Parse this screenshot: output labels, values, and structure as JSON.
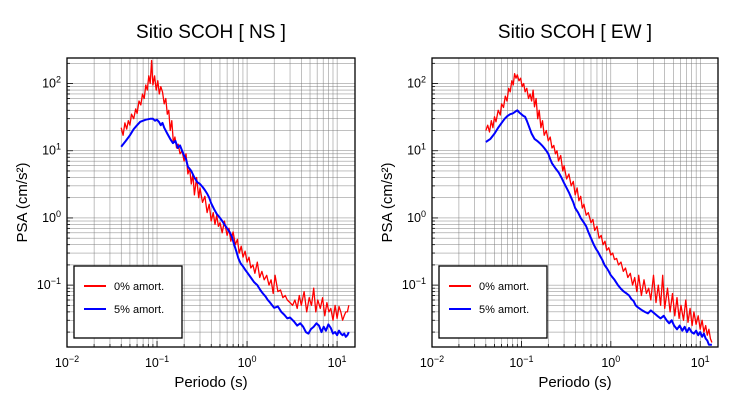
{
  "chart_data": [
    {
      "type": "line",
      "title": "Sitio SCOH [ NS ]",
      "xlabel": "Periodo (s)",
      "ylabel": "PSA (cm/s²)",
      "xscale": "log",
      "yscale": "log",
      "xlim": [
        0.01,
        15.8
      ],
      "ylim": [
        0.012,
        240
      ],
      "xticks": [
        {
          "v": 0.01,
          "base": "10",
          "exp": "−2"
        },
        {
          "v": 0.1,
          "base": "10",
          "exp": "−1"
        },
        {
          "v": 1,
          "base": "10",
          "exp": "0"
        },
        {
          "v": 10,
          "base": "10",
          "exp": "1"
        }
      ],
      "yticks": [
        {
          "v": 0.1,
          "base": "10",
          "exp": "−1"
        },
        {
          "v": 1,
          "base": "10",
          "exp": "0"
        },
        {
          "v": 10,
          "base": "10",
          "exp": "1"
        },
        {
          "v": 100,
          "base": "10",
          "exp": "2"
        }
      ],
      "grid": true,
      "legend_position": "bottom-left",
      "series": [
        {
          "name": "0% amort.",
          "color": "#ff0000",
          "x": [
            0.04,
            0.042,
            0.044,
            0.046,
            0.048,
            0.05,
            0.052,
            0.055,
            0.058,
            0.06,
            0.063,
            0.066,
            0.069,
            0.072,
            0.075,
            0.078,
            0.081,
            0.084,
            0.087,
            0.09,
            0.094,
            0.098,
            0.102,
            0.106,
            0.11,
            0.115,
            0.12,
            0.125,
            0.13,
            0.135,
            0.14,
            0.146,
            0.152,
            0.158,
            0.165,
            0.172,
            0.18,
            0.19,
            0.2,
            0.21,
            0.22,
            0.23,
            0.24,
            0.25,
            0.26,
            0.275,
            0.29,
            0.3,
            0.32,
            0.34,
            0.36,
            0.38,
            0.4,
            0.42,
            0.44,
            0.46,
            0.48,
            0.5,
            0.53,
            0.56,
            0.6,
            0.63,
            0.66,
            0.7,
            0.74,
            0.78,
            0.82,
            0.86,
            0.9,
            0.95,
            1.0,
            1.05,
            1.1,
            1.16,
            1.22,
            1.3,
            1.38,
            1.46,
            1.55,
            1.65,
            1.75,
            1.85,
            1.95,
            2.05,
            2.2,
            2.35,
            2.5,
            2.65,
            2.8,
            3.0,
            3.2,
            3.4,
            3.6,
            3.8,
            4.0,
            4.3,
            4.6,
            4.9,
            5.2,
            5.5,
            5.8,
            6.1,
            6.5,
            6.9,
            7.3,
            7.7,
            8.1,
            8.5,
            9.0,
            9.5,
            10.0,
            10.5,
            11.0,
            11.5,
            12.0,
            12.5,
            13.0,
            13.5
          ],
          "values": [
            22,
            17,
            26,
            21,
            28,
            24,
            35,
            30,
            42,
            36,
            55,
            48,
            70,
            60,
            95,
            80,
            130,
            100,
            220,
            95,
            130,
            80,
            110,
            70,
            90,
            75,
            50,
            60,
            35,
            40,
            20,
            28,
            13,
            16,
            11,
            12.5,
            9,
            10,
            7,
            9,
            4.5,
            5.5,
            3.2,
            4.5,
            2.2,
            4.0,
            2.0,
            2.8,
            1.7,
            2.1,
            1.2,
            1.6,
            0.9,
            1.2,
            0.8,
            1.1,
            0.75,
            0.85,
            0.6,
            0.9,
            0.55,
            0.7,
            0.45,
            0.62,
            0.4,
            0.48,
            0.3,
            0.38,
            0.26,
            0.32,
            0.22,
            0.26,
            0.18,
            0.2,
            0.15,
            0.22,
            0.13,
            0.16,
            0.12,
            0.14,
            0.1,
            0.12,
            0.075,
            0.14,
            0.08,
            0.085,
            0.065,
            0.07,
            0.06,
            0.055,
            0.05,
            0.06,
            0.045,
            0.07,
            0.05,
            0.08,
            0.04,
            0.065,
            0.05,
            0.09,
            0.04,
            0.06,
            0.045,
            0.065,
            0.035,
            0.055,
            0.04,
            0.045,
            0.03,
            0.05,
            0.032,
            0.048,
            0.04,
            0.03,
            0.035,
            0.04,
            0.04,
            0.05
          ]
        },
        {
          "name": "5% amort.",
          "color": "#0000ff",
          "x": [
            0.04,
            0.045,
            0.05,
            0.055,
            0.06,
            0.065,
            0.07,
            0.075,
            0.08,
            0.085,
            0.09,
            0.095,
            0.1,
            0.105,
            0.11,
            0.115,
            0.12,
            0.13,
            0.14,
            0.15,
            0.16,
            0.17,
            0.18,
            0.19,
            0.2,
            0.21,
            0.22,
            0.24,
            0.26,
            0.28,
            0.3,
            0.32,
            0.34,
            0.36,
            0.38,
            0.4,
            0.43,
            0.46,
            0.5,
            0.53,
            0.56,
            0.6,
            0.64,
            0.68,
            0.72,
            0.76,
            0.8,
            0.85,
            0.9,
            0.95,
            1.0,
            1.1,
            1.2,
            1.3,
            1.4,
            1.5,
            1.6,
            1.7,
            1.8,
            1.9,
            2.0,
            2.2,
            2.4,
            2.6,
            2.8,
            3.0,
            3.3,
            3.6,
            3.9,
            4.2,
            4.5,
            4.8,
            5.1,
            5.5,
            5.9,
            6.3,
            6.7,
            7.1,
            7.5,
            8.0,
            8.5,
            9.0,
            9.5,
            10.0,
            10.5,
            11.0,
            11.5,
            12.0,
            12.5,
            13.0,
            13.5
          ],
          "values": [
            11.5,
            14,
            17,
            21,
            24,
            27,
            28,
            29,
            29.5,
            30,
            30,
            28,
            29,
            27,
            24,
            26,
            22,
            18,
            15,
            13,
            14,
            11,
            12,
            10,
            8.5,
            7.5,
            5.8,
            5,
            4,
            3.4,
            3.2,
            2.9,
            2.6,
            2.3,
            2.0,
            1.65,
            1.35,
            1.15,
            1.0,
            0.9,
            0.8,
            0.7,
            0.62,
            0.52,
            0.4,
            0.32,
            0.25,
            0.21,
            0.19,
            0.17,
            0.155,
            0.13,
            0.11,
            0.1,
            0.085,
            0.075,
            0.068,
            0.06,
            0.055,
            0.05,
            0.046,
            0.048,
            0.04,
            0.036,
            0.032,
            0.033,
            0.029,
            0.025,
            0.027,
            0.024,
            0.02,
            0.019,
            0.022,
            0.024,
            0.027,
            0.025,
            0.02,
            0.024,
            0.021,
            0.026,
            0.023,
            0.019,
            0.02,
            0.018,
            0.021,
            0.019,
            0.018,
            0.019,
            0.017,
            0.018,
            0.02
          ]
        }
      ]
    },
    {
      "type": "line",
      "title": "Sitio SCOH [ EW ]",
      "xlabel": "Periodo (s)",
      "ylabel": "PSA (cm/s²)",
      "xscale": "log",
      "yscale": "log",
      "xlim": [
        0.01,
        15.8
      ],
      "ylim": [
        0.012,
        240
      ],
      "xticks": [
        {
          "v": 0.01,
          "base": "10",
          "exp": "−2"
        },
        {
          "v": 0.1,
          "base": "10",
          "exp": "−1"
        },
        {
          "v": 1,
          "base": "10",
          "exp": "0"
        },
        {
          "v": 10,
          "base": "10",
          "exp": "1"
        }
      ],
      "yticks": [
        {
          "v": 0.1,
          "base": "10",
          "exp": "−1"
        },
        {
          "v": 1,
          "base": "10",
          "exp": "0"
        },
        {
          "v": 10,
          "base": "10",
          "exp": "1"
        },
        {
          "v": 100,
          "base": "10",
          "exp": "2"
        }
      ],
      "grid": true,
      "legend_position": "bottom-left",
      "series": [
        {
          "name": "0% amort.",
          "color": "#ff0000",
          "x": [
            0.04,
            0.042,
            0.044,
            0.046,
            0.048,
            0.05,
            0.052,
            0.055,
            0.058,
            0.06,
            0.063,
            0.066,
            0.069,
            0.072,
            0.075,
            0.078,
            0.081,
            0.084,
            0.087,
            0.09,
            0.094,
            0.098,
            0.102,
            0.106,
            0.11,
            0.115,
            0.12,
            0.125,
            0.13,
            0.135,
            0.14,
            0.146,
            0.152,
            0.158,
            0.165,
            0.172,
            0.18,
            0.19,
            0.2,
            0.21,
            0.22,
            0.23,
            0.24,
            0.25,
            0.26,
            0.275,
            0.29,
            0.3,
            0.32,
            0.34,
            0.36,
            0.38,
            0.4,
            0.42,
            0.44,
            0.46,
            0.48,
            0.5,
            0.53,
            0.56,
            0.6,
            0.63,
            0.66,
            0.7,
            0.74,
            0.78,
            0.82,
            0.86,
            0.9,
            0.95,
            1.0,
            1.05,
            1.1,
            1.16,
            1.22,
            1.3,
            1.38,
            1.46,
            1.55,
            1.65,
            1.75,
            1.85,
            1.95,
            2.05,
            2.2,
            2.35,
            2.5,
            2.65,
            2.8,
            3.0,
            3.2,
            3.4,
            3.6,
            3.8,
            4.0,
            4.3,
            4.6,
            4.9,
            5.2,
            5.5,
            5.8,
            6.1,
            6.5,
            6.9,
            7.3,
            7.7,
            8.1,
            8.5,
            9.0,
            9.5,
            10.0,
            10.5,
            11.0,
            11.5,
            12.0,
            12.5,
            13.0,
            13.5
          ],
          "values": [
            20,
            24,
            19,
            28,
            22,
            32,
            27,
            40,
            34,
            50,
            44,
            65,
            55,
            85,
            75,
            110,
            95,
            140,
            120,
            135,
            110,
            120,
            90,
            100,
            75,
            85,
            60,
            70,
            55,
            80,
            45,
            60,
            30,
            40,
            22,
            28,
            17,
            20,
            14,
            16,
            11,
            12,
            9,
            10,
            7,
            8.5,
            5,
            6,
            3.8,
            4.5,
            3,
            3.5,
            2.2,
            2.8,
            1.8,
            2.1,
            1.4,
            1.6,
            1.1,
            1.2,
            0.85,
            0.95,
            0.65,
            0.75,
            0.5,
            0.55,
            0.4,
            0.45,
            0.33,
            0.36,
            0.28,
            0.3,
            0.24,
            0.25,
            0.2,
            0.22,
            0.16,
            0.18,
            0.13,
            0.15,
            0.1,
            0.13,
            0.08,
            0.14,
            0.07,
            0.12,
            0.075,
            0.09,
            0.06,
            0.14,
            0.055,
            0.1,
            0.05,
            0.14,
            0.045,
            0.09,
            0.04,
            0.075,
            0.035,
            0.065,
            0.032,
            0.05,
            0.03,
            0.06,
            0.028,
            0.045,
            0.025,
            0.04,
            0.026,
            0.035,
            0.022,
            0.03,
            0.02,
            0.025,
            0.018,
            0.022,
            0.016,
            0.014
          ]
        },
        {
          "name": "5% amort.",
          "color": "#0000ff",
          "x": [
            0.04,
            0.045,
            0.05,
            0.055,
            0.06,
            0.065,
            0.07,
            0.075,
            0.08,
            0.085,
            0.09,
            0.095,
            0.1,
            0.105,
            0.11,
            0.115,
            0.12,
            0.13,
            0.14,
            0.15,
            0.16,
            0.17,
            0.18,
            0.19,
            0.2,
            0.21,
            0.22,
            0.24,
            0.26,
            0.28,
            0.3,
            0.32,
            0.34,
            0.36,
            0.38,
            0.4,
            0.43,
            0.46,
            0.5,
            0.53,
            0.56,
            0.6,
            0.64,
            0.68,
            0.72,
            0.76,
            0.8,
            0.85,
            0.9,
            0.95,
            1.0,
            1.1,
            1.2,
            1.3,
            1.4,
            1.5,
            1.6,
            1.7,
            1.8,
            1.9,
            2.0,
            2.2,
            2.4,
            2.6,
            2.8,
            3.0,
            3.3,
            3.6,
            3.9,
            4.2,
            4.5,
            4.8,
            5.1,
            5.5,
            5.9,
            6.3,
            6.7,
            7.1,
            7.5,
            8.0,
            8.5,
            9.0,
            9.5,
            10.0,
            10.5,
            11.0,
            11.5,
            12.0,
            12.5,
            13.0,
            13.5
          ],
          "values": [
            13.5,
            15,
            18,
            22,
            26,
            30,
            33,
            35,
            36,
            38,
            40,
            37,
            35,
            33,
            32,
            28,
            24,
            18,
            15,
            14,
            13,
            12,
            11,
            10,
            9,
            7.5,
            6.5,
            5.5,
            4.8,
            4.0,
            3.3,
            2.8,
            2.4,
            2.0,
            1.7,
            1.4,
            1.2,
            1.0,
            0.85,
            0.75,
            0.62,
            0.5,
            0.41,
            0.35,
            0.31,
            0.27,
            0.24,
            0.2,
            0.18,
            0.16,
            0.14,
            0.12,
            0.1,
            0.088,
            0.08,
            0.075,
            0.07,
            0.062,
            0.058,
            0.05,
            0.047,
            0.043,
            0.04,
            0.038,
            0.042,
            0.039,
            0.035,
            0.032,
            0.035,
            0.03,
            0.027,
            0.03,
            0.025,
            0.022,
            0.025,
            0.021,
            0.024,
            0.02,
            0.023,
            0.02,
            0.019,
            0.021,
            0.018,
            0.02,
            0.017,
            0.019,
            0.016,
            0.015,
            0.013,
            0.013,
            0.013
          ]
        }
      ]
    }
  ]
}
